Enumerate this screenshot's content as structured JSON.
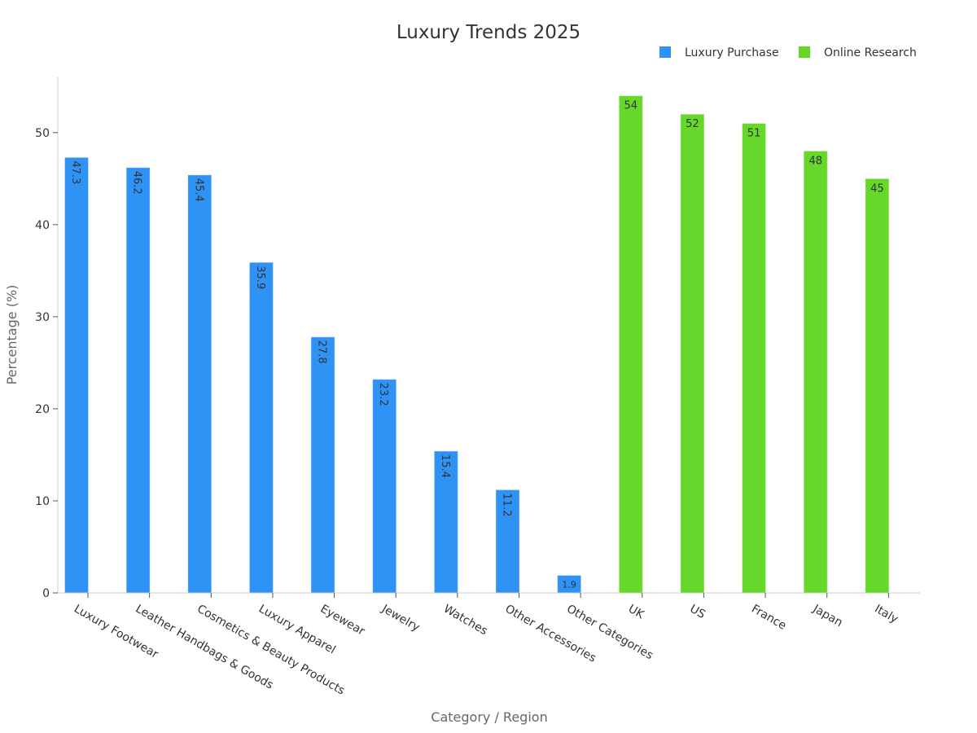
{
  "chart_data": {
    "type": "bar",
    "title": "Luxury Trends 2025",
    "xlabel": "Category / Region",
    "ylabel": "Percentage (%)",
    "ylim": [
      0,
      56
    ],
    "yticks": [
      0,
      10,
      20,
      30,
      40,
      50
    ],
    "grid": false,
    "legend_position": "top-right",
    "categories": [
      "Luxury Footwear",
      "Leather Handbags & Goods",
      "Cosmetics & Beauty Products",
      "Luxury Apparel",
      "Eyewear",
      "Jewelry",
      "Watches",
      "Other Accessories",
      "Other Categories",
      "UK",
      "US",
      "France",
      "Japan",
      "Italy"
    ],
    "series": [
      {
        "name": "Luxury Purchase",
        "color": "#2f92f5",
        "values": [
          47.3,
          46.2,
          45.4,
          35.9,
          27.8,
          23.2,
          15.4,
          11.2,
          1.9,
          null,
          null,
          null,
          null,
          null
        ]
      },
      {
        "name": "Online Research",
        "color": "#66d82a",
        "values": [
          null,
          null,
          null,
          null,
          null,
          null,
          null,
          null,
          null,
          54,
          52,
          51,
          48,
          45
        ]
      }
    ]
  }
}
